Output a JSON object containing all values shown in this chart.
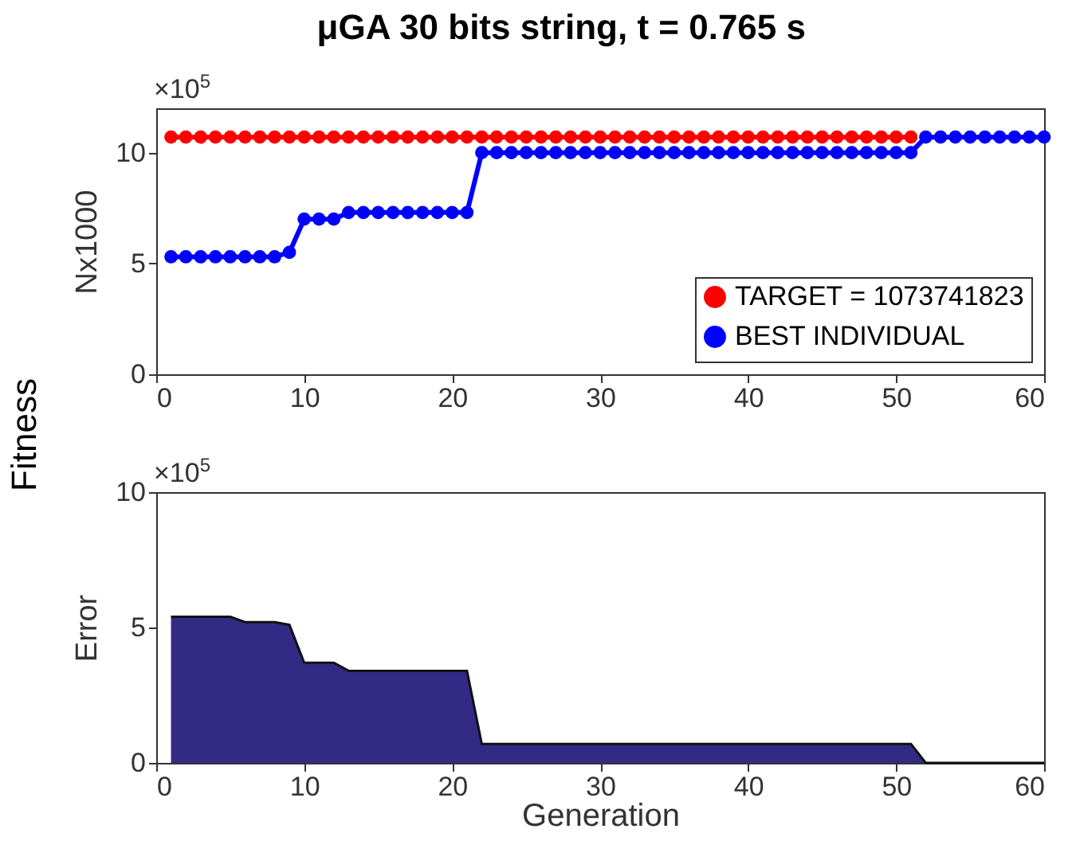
{
  "chart_data": [
    {
      "type": "line",
      "title": "μGA 30 bits string, t = 0.765 s",
      "ylabel": "Nx1000",
      "xlim": [
        0,
        60
      ],
      "xticks": [
        0,
        10,
        20,
        30,
        40,
        50,
        60
      ],
      "ylim": [
        0,
        12
      ],
      "yticks": [
        0,
        5,
        10
      ],
      "legend": "bottom right",
      "marker": "circle",
      "line_style": "solid",
      "grid": false,
      "annotations": [
        "×10$^{5}$",
        "Fitness"
      ],
      "x": [
        1,
        2,
        3,
        4,
        5,
        6,
        7,
        8,
        9,
        10,
        11,
        12,
        13,
        14,
        15,
        16,
        17,
        18,
        19,
        20,
        21,
        22,
        23,
        24,
        25,
        26,
        27,
        28,
        29,
        30,
        31,
        32,
        33,
        34,
        35,
        36,
        37,
        38,
        39,
        40,
        41,
        42,
        43,
        44,
        45,
        46,
        47,
        48,
        49,
        50,
        51,
        52,
        53,
        54,
        55,
        56,
        57,
        58,
        59,
        60
      ],
      "series": [
        {
          "name": "TARGET = 1073741823",
          "color": "#ff0000",
          "values": [
            10.7,
            10.7,
            10.7,
            10.7,
            10.7,
            10.7,
            10.7,
            10.7,
            10.7,
            10.7,
            10.7,
            10.7,
            10.7,
            10.7,
            10.7,
            10.7,
            10.7,
            10.7,
            10.7,
            10.7,
            10.7,
            10.7,
            10.7,
            10.7,
            10.7,
            10.7,
            10.7,
            10.7,
            10.7,
            10.7,
            10.7,
            10.7,
            10.7,
            10.7,
            10.7,
            10.7,
            10.7,
            10.7,
            10.7,
            10.7,
            10.7,
            10.7,
            10.7,
            10.7,
            10.7,
            10.7,
            10.7,
            10.7,
            10.7,
            10.7,
            10.7,
            null,
            null,
            null,
            null,
            null,
            null,
            null,
            null,
            null
          ]
        },
        {
          "name": "BEST INDIVIDUAL",
          "color": "#0000ff",
          "values": [
            5.3,
            5.3,
            5.3,
            5.3,
            5.3,
            5.3,
            5.3,
            5.3,
            5.5,
            7.0,
            7.0,
            7.0,
            7.3,
            7.3,
            7.3,
            7.3,
            7.3,
            7.3,
            7.3,
            7.3,
            7.3,
            10.0,
            10.0,
            10.0,
            10.0,
            10.0,
            10.0,
            10.0,
            10.0,
            10.0,
            10.0,
            10.0,
            10.0,
            10.0,
            10.0,
            10.0,
            10.0,
            10.0,
            10.0,
            10.0,
            10.0,
            10.0,
            10.0,
            10.0,
            10.0,
            10.0,
            10.0,
            10.0,
            10.0,
            10.0,
            10.0,
            10.7,
            10.7,
            10.7,
            10.7,
            10.7,
            10.7,
            10.7,
            10.7,
            10.7
          ]
        }
      ]
    },
    {
      "type": "area",
      "xlabel": "Generation",
      "ylabel": "Error",
      "xlim": [
        0,
        60
      ],
      "xticks": [
        0,
        10,
        20,
        30,
        40,
        50,
        60
      ],
      "ylim": [
        0,
        10
      ],
      "yticks": [
        0,
        5,
        10
      ],
      "grid": false,
      "color": "#332a86",
      "annotations": [
        "×10$^{5}$"
      ],
      "x": [
        1,
        2,
        3,
        4,
        5,
        6,
        7,
        8,
        9,
        10,
        11,
        12,
        13,
        14,
        15,
        16,
        17,
        18,
        19,
        20,
        21,
        22,
        23,
        24,
        25,
        26,
        27,
        28,
        29,
        30,
        31,
        32,
        33,
        34,
        35,
        36,
        37,
        38,
        39,
        40,
        41,
        42,
        43,
        44,
        45,
        46,
        47,
        48,
        49,
        50,
        51,
        52,
        53,
        54,
        55,
        56,
        57,
        58,
        59,
        60
      ],
      "values": [
        5.4,
        5.4,
        5.4,
        5.4,
        5.4,
        5.2,
        5.2,
        5.2,
        5.1,
        3.7,
        3.7,
        3.7,
        3.4,
        3.4,
        3.4,
        3.4,
        3.4,
        3.4,
        3.4,
        3.4,
        3.4,
        0.7,
        0.7,
        0.7,
        0.7,
        0.7,
        0.7,
        0.7,
        0.7,
        0.7,
        0.7,
        0.7,
        0.7,
        0.7,
        0.7,
        0.7,
        0.7,
        0.7,
        0.7,
        0.7,
        0.7,
        0.7,
        0.7,
        0.7,
        0.7,
        0.7,
        0.7,
        0.7,
        0.7,
        0.7,
        0.7,
        0,
        0,
        0,
        0,
        0,
        0,
        0,
        0,
        0
      ]
    }
  ]
}
